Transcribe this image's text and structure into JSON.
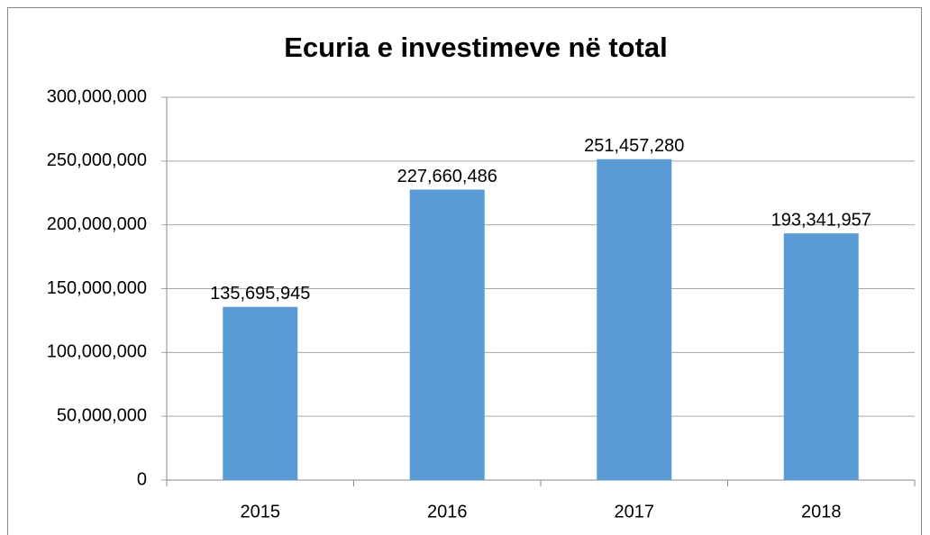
{
  "chart_data": {
    "type": "bar",
    "title": "Ecuria e investimeve në total",
    "categories": [
      "2015",
      "2016",
      "2017",
      "2018"
    ],
    "values": [
      135695945,
      227660486,
      251457280,
      193341957
    ],
    "value_labels": [
      "135,695,945",
      "227,660,486",
      "251,457,280",
      "193,341,957"
    ],
    "color": "#5b9bd5",
    "ylim": [
      0,
      300000000
    ],
    "yticks": [
      0,
      {
        "value": 50000000,
        "label": "50,000,000"
      },
      {
        "value": 100000000,
        "label": "100,000,000"
      },
      {
        "value": 150000000,
        "label": "150,000,000"
      },
      {
        "value": 200000000,
        "label": "200,000,000"
      },
      {
        "value": 250000000,
        "label": "250,000,000"
      },
      {
        "value": 300000000,
        "label": "300,000,000"
      }
    ],
    "grid": true
  }
}
